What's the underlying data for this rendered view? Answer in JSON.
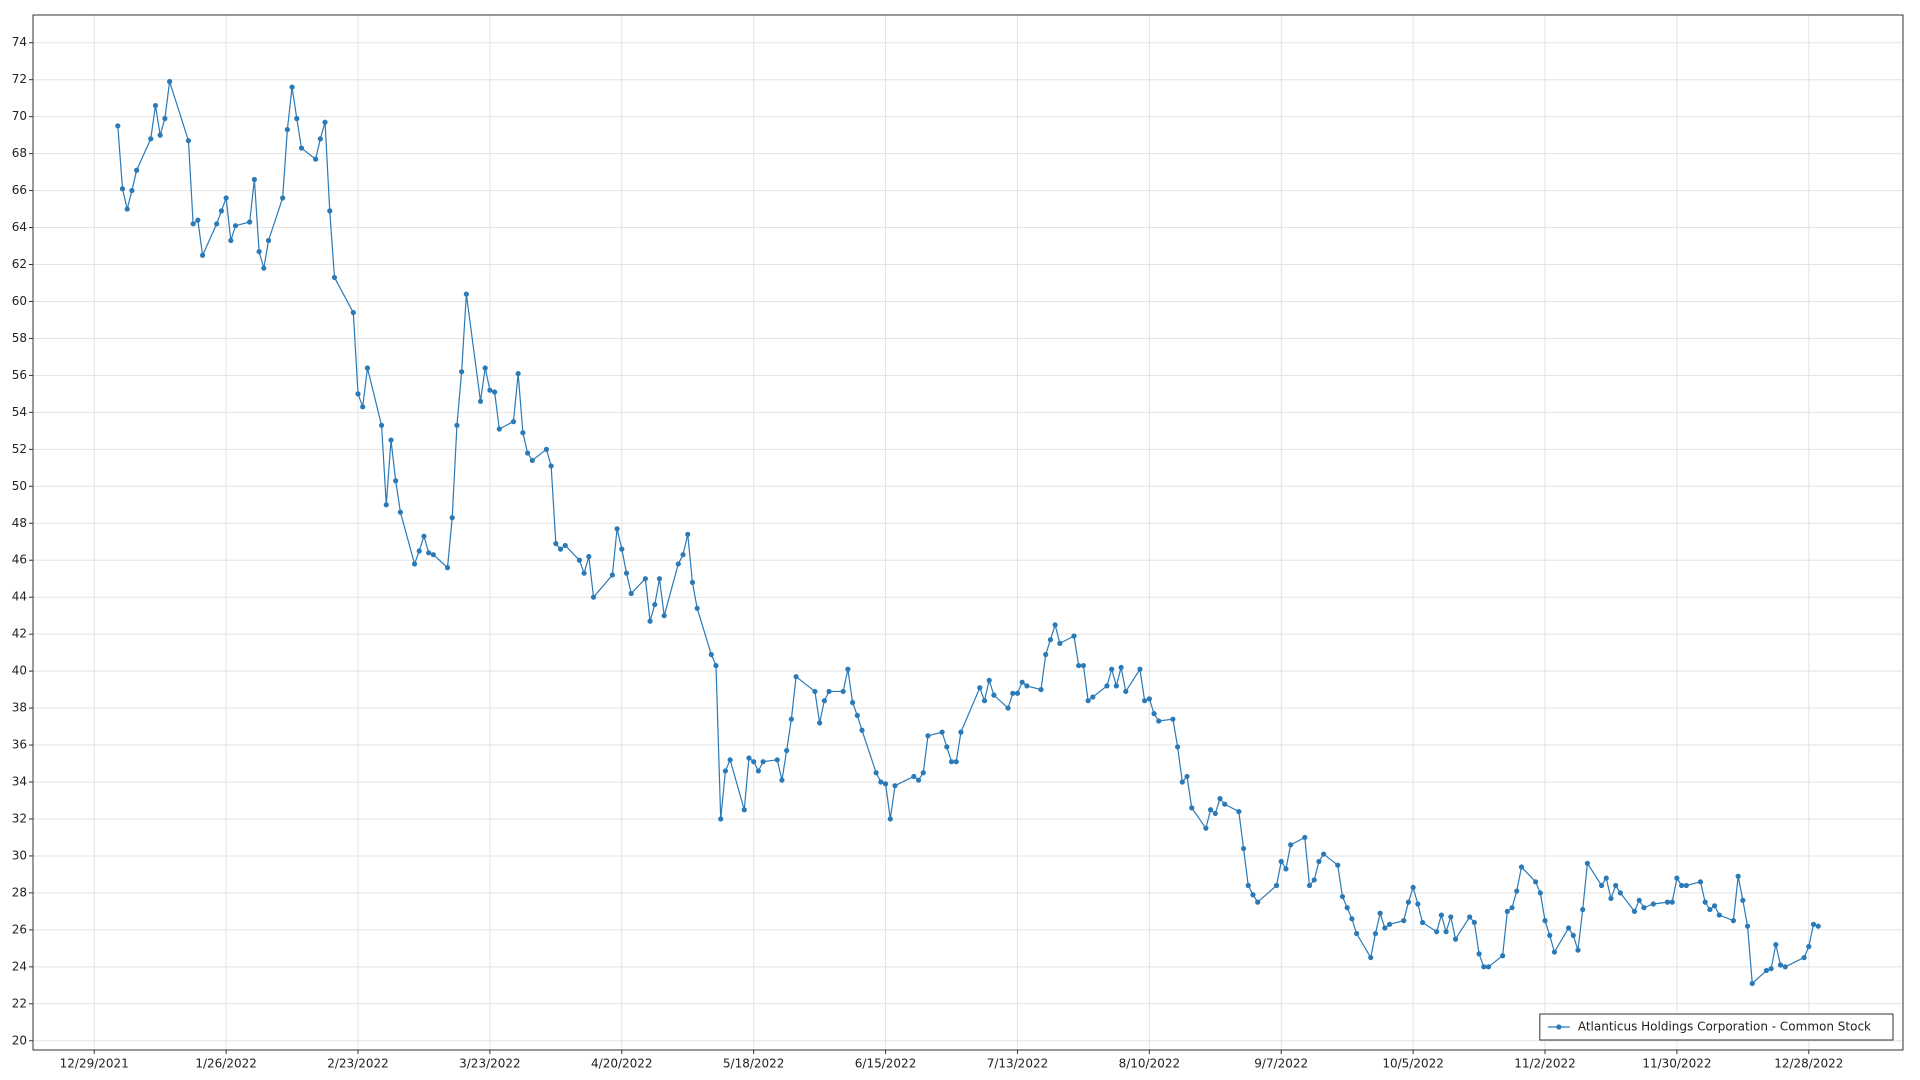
{
  "chart_data": {
    "type": "line",
    "x": [
      "1/3/2022",
      "1/4/2022",
      "1/5/2022",
      "1/6/2022",
      "1/7/2022",
      "1/10/2022",
      "1/11/2022",
      "1/12/2022",
      "1/13/2022",
      "1/14/2022",
      "1/18/2022",
      "1/19/2022",
      "1/20/2022",
      "1/21/2022",
      "1/24/2022",
      "1/25/2022",
      "1/26/2022",
      "1/27/2022",
      "1/28/2022",
      "1/31/2022",
      "2/1/2022",
      "2/2/2022",
      "2/3/2022",
      "2/4/2022",
      "2/7/2022",
      "2/8/2022",
      "2/9/2022",
      "2/10/2022",
      "2/11/2022",
      "2/14/2022",
      "2/15/2022",
      "2/16/2022",
      "2/17/2022",
      "2/18/2022",
      "2/22/2022",
      "2/23/2022",
      "2/24/2022",
      "2/25/2022",
      "2/28/2022",
      "3/1/2022",
      "3/2/2022",
      "3/3/2022",
      "3/4/2022",
      "3/7/2022",
      "3/8/2022",
      "3/9/2022",
      "3/10/2022",
      "3/11/2022",
      "3/14/2022",
      "3/15/2022",
      "3/16/2022",
      "3/17/2022",
      "3/18/2022",
      "3/21/2022",
      "3/22/2022",
      "3/23/2022",
      "3/24/2022",
      "3/25/2022",
      "3/28/2022",
      "3/29/2022",
      "3/30/2022",
      "3/31/2022",
      "4/1/2022",
      "4/4/2022",
      "4/5/2022",
      "4/6/2022",
      "4/7/2022",
      "4/8/2022",
      "4/11/2022",
      "4/12/2022",
      "4/13/2022",
      "4/14/2022",
      "4/18/2022",
      "4/19/2022",
      "4/20/2022",
      "4/21/2022",
      "4/22/2022",
      "4/25/2022",
      "4/26/2022",
      "4/27/2022",
      "4/28/2022",
      "4/29/2022",
      "5/2/2022",
      "5/3/2022",
      "5/4/2022",
      "5/5/2022",
      "5/6/2022",
      "5/9/2022",
      "5/10/2022",
      "5/11/2022",
      "5/12/2022",
      "5/13/2022",
      "5/16/2022",
      "5/17/2022",
      "5/18/2022",
      "5/19/2022",
      "5/20/2022",
      "5/23/2022",
      "5/24/2022",
      "5/25/2022",
      "5/26/2022",
      "5/27/2022",
      "5/31/2022",
      "6/1/2022",
      "6/2/2022",
      "6/3/2022",
      "6/6/2022",
      "6/7/2022",
      "6/8/2022",
      "6/9/2022",
      "6/10/2022",
      "6/13/2022",
      "6/14/2022",
      "6/15/2022",
      "6/16/2022",
      "6/17/2022",
      "6/21/2022",
      "6/22/2022",
      "6/23/2022",
      "6/24/2022",
      "6/27/2022",
      "6/28/2022",
      "6/29/2022",
      "6/30/2022",
      "7/1/2022",
      "7/5/2022",
      "7/6/2022",
      "7/7/2022",
      "7/8/2022",
      "7/11/2022",
      "7/12/2022",
      "7/13/2022",
      "7/14/2022",
      "7/15/2022",
      "7/18/2022",
      "7/19/2022",
      "7/20/2022",
      "7/21/2022",
      "7/22/2022",
      "7/25/2022",
      "7/26/2022",
      "7/27/2022",
      "7/28/2022",
      "7/29/2022",
      "8/1/2022",
      "8/2/2022",
      "8/3/2022",
      "8/4/2022",
      "8/5/2022",
      "8/8/2022",
      "8/9/2022",
      "8/10/2022",
      "8/11/2022",
      "8/12/2022",
      "8/15/2022",
      "8/16/2022",
      "8/17/2022",
      "8/18/2022",
      "8/19/2022",
      "8/22/2022",
      "8/23/2022",
      "8/24/2022",
      "8/25/2022",
      "8/26/2022",
      "8/29/2022",
      "8/30/2022",
      "8/31/2022",
      "9/1/2022",
      "9/2/2022",
      "9/6/2022",
      "9/7/2022",
      "9/8/2022",
      "9/9/2022",
      "9/12/2022",
      "9/13/2022",
      "9/14/2022",
      "9/15/2022",
      "9/16/2022",
      "9/19/2022",
      "9/20/2022",
      "9/21/2022",
      "9/22/2022",
      "9/23/2022",
      "9/26/2022",
      "9/27/2022",
      "9/28/2022",
      "9/29/2022",
      "9/30/2022",
      "10/3/2022",
      "10/4/2022",
      "10/5/2022",
      "10/6/2022",
      "10/7/2022",
      "10/10/2022",
      "10/11/2022",
      "10/12/2022",
      "10/13/2022",
      "10/14/2022",
      "10/17/2022",
      "10/18/2022",
      "10/19/2022",
      "10/20/2022",
      "10/21/2022",
      "10/24/2022",
      "10/25/2022",
      "10/26/2022",
      "10/27/2022",
      "10/28/2022",
      "10/31/2022",
      "11/1/2022",
      "11/2/2022",
      "11/3/2022",
      "11/4/2022",
      "11/7/2022",
      "11/8/2022",
      "11/9/2022",
      "11/10/2022",
      "11/11/2022",
      "11/14/2022",
      "11/15/2022",
      "11/16/2022",
      "11/17/2022",
      "11/18/2022",
      "11/21/2022",
      "11/22/2022",
      "11/23/2022",
      "11/25/2022",
      "11/28/2022",
      "11/29/2022",
      "11/30/2022",
      "12/1/2022",
      "12/2/2022",
      "12/5/2022",
      "12/6/2022",
      "12/7/2022",
      "12/8/2022",
      "12/9/2022",
      "12/12/2022",
      "12/13/2022",
      "12/14/2022",
      "12/15/2022",
      "12/16/2022",
      "12/19/2022",
      "12/20/2022",
      "12/21/2022",
      "12/22/2022",
      "12/23/2022",
      "12/27/2022",
      "12/28/2022",
      "12/29/2022",
      "12/30/2022"
    ],
    "series": [
      {
        "name": "Atlanticus Holdings Corporation - Common Stock",
        "color": "#2a7ab8",
        "values": [
          69.5,
          66.1,
          65.0,
          66.0,
          67.1,
          68.8,
          70.6,
          69.0,
          69.9,
          71.9,
          68.7,
          64.2,
          64.4,
          62.5,
          64.2,
          64.9,
          65.6,
          63.3,
          64.1,
          64.3,
          66.6,
          62.7,
          61.8,
          63.3,
          65.6,
          69.3,
          71.6,
          69.9,
          68.3,
          67.7,
          68.8,
          69.7,
          64.9,
          61.3,
          59.4,
          55.0,
          54.3,
          56.4,
          53.3,
          49.0,
          52.5,
          50.3,
          48.6,
          45.8,
          46.5,
          47.3,
          46.4,
          46.3,
          45.6,
          48.3,
          53.3,
          56.2,
          60.4,
          54.6,
          56.4,
          55.2,
          55.1,
          53.1,
          53.5,
          56.1,
          52.9,
          51.8,
          51.4,
          52.0,
          51.1,
          46.9,
          46.6,
          46.8,
          46.0,
          45.3,
          46.2,
          44.0,
          45.2,
          47.7,
          46.6,
          45.3,
          44.2,
          45.0,
          42.7,
          43.6,
          45.0,
          43.0,
          45.8,
          46.3,
          47.4,
          44.8,
          43.4,
          40.9,
          40.3,
          32.0,
          34.6,
          35.2,
          32.5,
          35.3,
          35.1,
          34.6,
          35.1,
          35.2,
          34.1,
          35.7,
          37.4,
          39.7,
          38.9,
          37.2,
          38.4,
          38.9,
          38.9,
          40.1,
          38.3,
          37.6,
          36.8,
          34.5,
          34.0,
          33.9,
          32.0,
          33.8,
          34.3,
          34.1,
          34.5,
          36.5,
          36.7,
          35.9,
          35.1,
          35.1,
          36.7,
          39.1,
          38.4,
          39.5,
          38.7,
          38.0,
          38.8,
          38.8,
          39.4,
          39.2,
          39.0,
          40.9,
          41.7,
          42.5,
          41.5,
          41.9,
          40.3,
          40.3,
          38.4,
          38.6,
          39.2,
          40.1,
          39.2,
          40.2,
          38.9,
          40.1,
          38.4,
          38.5,
          37.7,
          37.3,
          37.4,
          35.9,
          34.0,
          34.3,
          32.6,
          31.5,
          32.5,
          32.3,
          33.1,
          32.8,
          32.4,
          30.4,
          28.4,
          27.9,
          27.5,
          28.4,
          29.7,
          29.3,
          30.6,
          31.0,
          28.4,
          28.7,
          29.7,
          30.1,
          29.5,
          27.8,
          27.2,
          26.6,
          25.8,
          24.5,
          25.8,
          26.9,
          26.1,
          26.3,
          26.5,
          27.5,
          28.3,
          27.4,
          26.4,
          25.9,
          26.8,
          25.9,
          26.7,
          25.5,
          26.7,
          26.4,
          24.7,
          24.0,
          24.0,
          24.6,
          27.0,
          27.2,
          28.1,
          29.4,
          28.6,
          28.0,
          26.5,
          25.7,
          24.8,
          26.1,
          25.7,
          24.9,
          27.1,
          29.6,
          28.4,
          28.8,
          27.7,
          28.4,
          28.0,
          27.0,
          27.6,
          27.2,
          27.4,
          27.5,
          27.5,
          28.8,
          28.4,
          28.4,
          28.6,
          27.5,
          27.1,
          27.3,
          26.8,
          26.5,
          28.9,
          27.6,
          26.2,
          23.1,
          23.8,
          23.9,
          25.2,
          24.1,
          24.0,
          24.5,
          25.1,
          26.3,
          26.2
        ]
      }
    ],
    "xlim": [
      "12/16/2021",
      "1/17/2023"
    ],
    "xticks": [
      "12/29/2021",
      "1/26/2022",
      "2/23/2022",
      "3/23/2022",
      "4/20/2022",
      "5/18/2022",
      "6/15/2022",
      "7/13/2022",
      "8/10/2022",
      "9/7/2022",
      "10/5/2022",
      "11/2/2022",
      "11/30/2022",
      "12/28/2022"
    ],
    "ylim": [
      19.5,
      75.5
    ],
    "yticks": [
      20,
      22,
      24,
      26,
      28,
      30,
      32,
      34,
      36,
      38,
      40,
      42,
      44,
      46,
      48,
      50,
      52,
      54,
      56,
      58,
      60,
      62,
      64,
      66,
      68,
      70,
      72,
      74
    ],
    "grid": true,
    "legend": "lower right"
  }
}
